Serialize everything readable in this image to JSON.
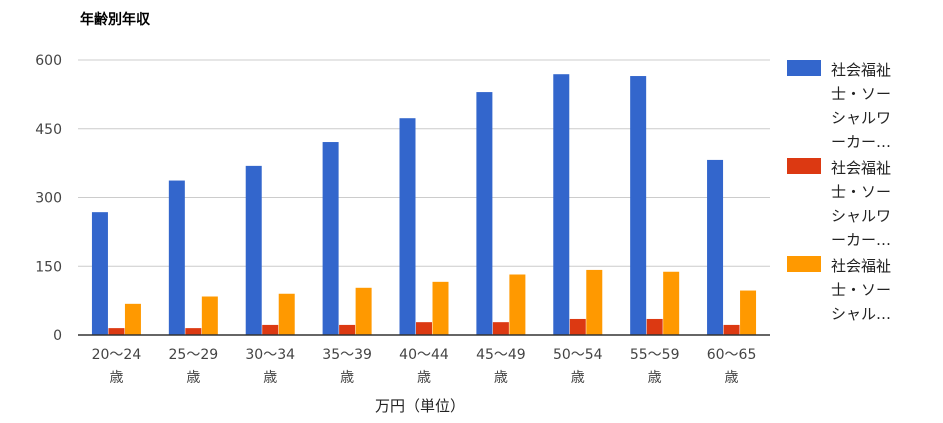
{
  "chart_data": {
    "type": "bar",
    "title": "年齢別年収",
    "xlabel": "万円（単位）",
    "ylabel": "",
    "ylim": [
      0,
      600
    ],
    "yticks": [
      0,
      150,
      300,
      450,
      600
    ],
    "categories": [
      [
        "20〜24",
        "歳"
      ],
      [
        "25〜29",
        "歳"
      ],
      [
        "30〜34",
        "歳"
      ],
      [
        "35〜39",
        "歳"
      ],
      [
        "40〜44",
        "歳"
      ],
      [
        "45〜49",
        "歳"
      ],
      [
        "50〜54",
        "歳"
      ],
      [
        "55〜59",
        "歳"
      ],
      [
        "60〜65",
        "歳"
      ]
    ],
    "series": [
      {
        "name": "社会福祉士・ソーシャルワーカー…",
        "legend_lines": [
          "社会福祉",
          "士・ソー",
          "シャルワ",
          "ーカー…"
        ],
        "color": "#3366cc",
        "values": [
          268,
          337,
          369,
          421,
          473,
          530,
          569,
          565,
          382
        ]
      },
      {
        "name": "社会福祉士・ソーシャルワーカー…",
        "legend_lines": [
          "社会福祉",
          "士・ソー",
          "シャルワ",
          "ーカー…"
        ],
        "color": "#dc3912",
        "values": [
          15,
          15,
          22,
          22,
          28,
          28,
          35,
          35,
          22
        ]
      },
      {
        "name": "社会福祉士・ソーシャル…",
        "legend_lines": [
          "社会福祉",
          "士・ソー",
          "シャル…"
        ],
        "color": "#ff9900",
        "values": [
          68,
          84,
          90,
          103,
          116,
          132,
          142,
          138,
          97
        ]
      }
    ],
    "grid": true,
    "legend_position": "right"
  }
}
